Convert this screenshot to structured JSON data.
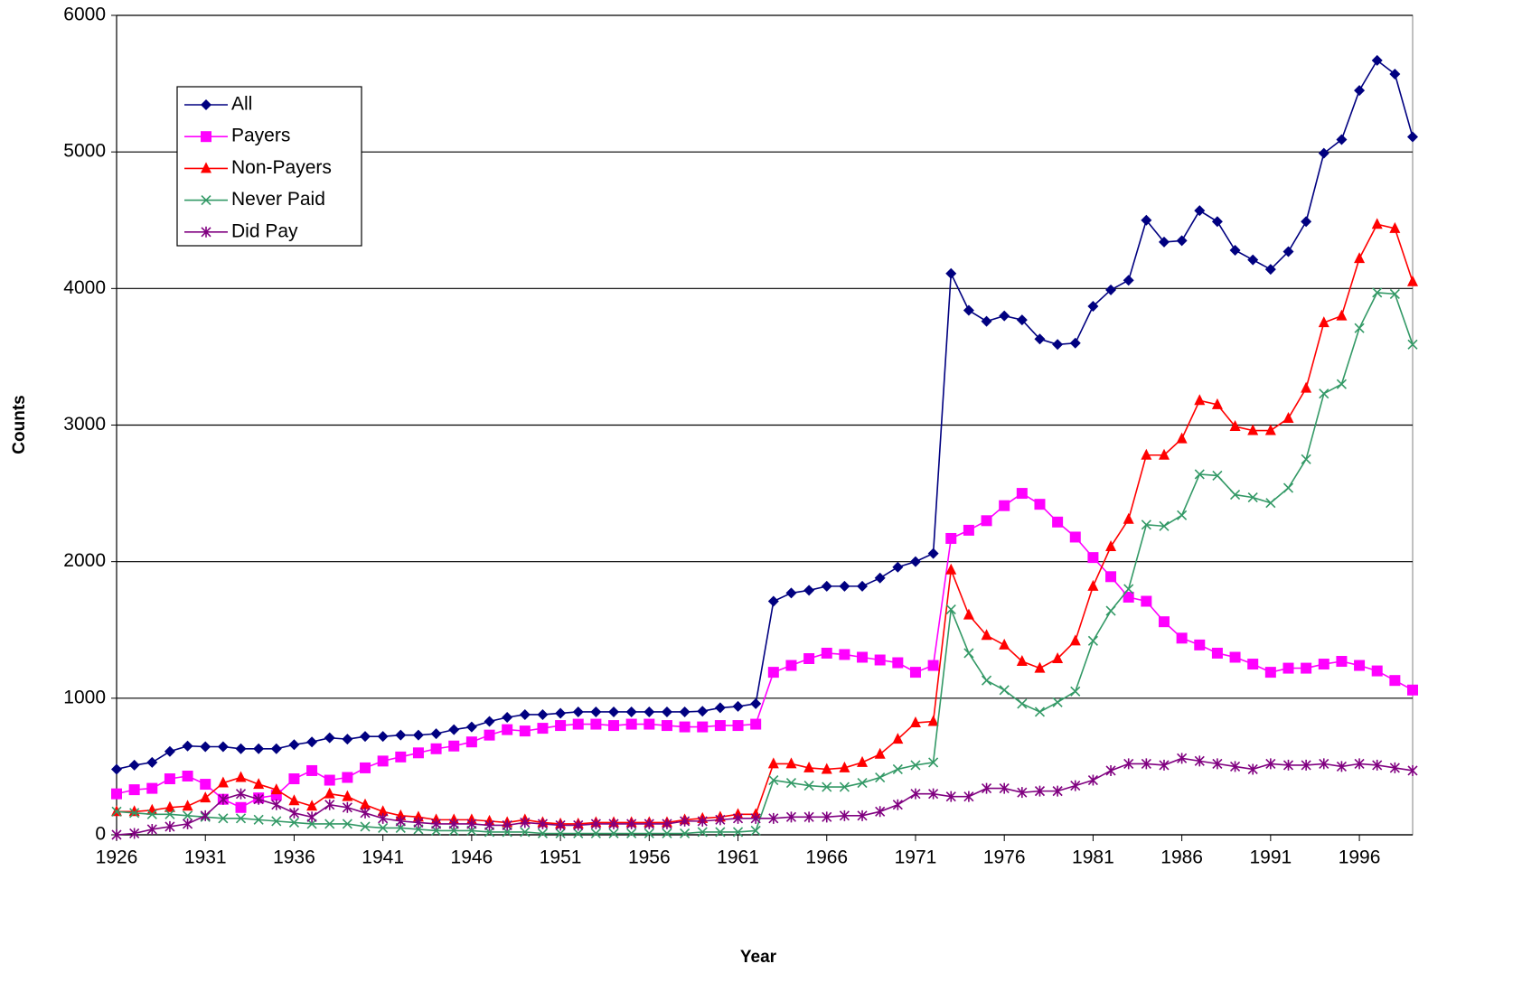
{
  "chart_data": {
    "type": "line",
    "xlabel": "Year",
    "ylabel": "Counts",
    "x": [
      1926,
      1927,
      1928,
      1929,
      1930,
      1931,
      1932,
      1933,
      1934,
      1935,
      1936,
      1937,
      1938,
      1939,
      1940,
      1941,
      1942,
      1943,
      1944,
      1945,
      1946,
      1947,
      1948,
      1949,
      1950,
      1951,
      1952,
      1953,
      1954,
      1955,
      1956,
      1957,
      1958,
      1959,
      1960,
      1961,
      1962,
      1963,
      1964,
      1965,
      1966,
      1967,
      1968,
      1969,
      1970,
      1971,
      1972,
      1973,
      1974,
      1975,
      1976,
      1977,
      1978,
      1979,
      1980,
      1981,
      1982,
      1983,
      1984,
      1985,
      1986,
      1987,
      1988,
      1989,
      1990,
      1991,
      1992,
      1993,
      1994,
      1995,
      1996,
      1997,
      1998,
      1999
    ],
    "xlim": [
      1926,
      1999
    ],
    "xticks": [
      1926,
      1931,
      1936,
      1941,
      1946,
      1951,
      1956,
      1961,
      1966,
      1971,
      1976,
      1981,
      1986,
      1991,
      1996
    ],
    "ylim": [
      0,
      6000
    ],
    "yticks": [
      0,
      1000,
      2000,
      3000,
      4000,
      5000,
      6000
    ],
    "grid": true,
    "legend": "upper left",
    "series": [
      {
        "name": "All",
        "color": "#000080",
        "marker": "diamond",
        "values": [
          480,
          510,
          530,
          610,
          650,
          645,
          645,
          630,
          630,
          630,
          660,
          680,
          710,
          700,
          720,
          720,
          730,
          730,
          740,
          770,
          790,
          830,
          860,
          880,
          880,
          890,
          900,
          900,
          900,
          900,
          900,
          900,
          900,
          905,
          930,
          940,
          960,
          1710,
          1770,
          1790,
          1820,
          1820,
          1820,
          1880,
          1960,
          2000,
          2060,
          4110,
          3840,
          3760,
          3800,
          3770,
          3630,
          3590,
          3600,
          3870,
          3990,
          4060,
          4500,
          4340,
          4350,
          4570,
          4490,
          4280,
          4210,
          4140,
          4270,
          4490,
          4990,
          5090,
          5450,
          5670,
          5570,
          5110
        ]
      },
      {
        "name": "Payers",
        "color": "#ff00ff",
        "marker": "square",
        "values": [
          300,
          330,
          340,
          410,
          430,
          370,
          260,
          200,
          270,
          290,
          410,
          470,
          400,
          420,
          490,
          540,
          570,
          600,
          630,
          650,
          680,
          730,
          770,
          760,
          780,
          800,
          810,
          810,
          800,
          810,
          810,
          800,
          790,
          790,
          800,
          800,
          810,
          1190,
          1240,
          1290,
          1330,
          1320,
          1300,
          1280,
          1260,
          1190,
          1240,
          2170,
          2230,
          2300,
          2410,
          2500,
          2420,
          2290,
          2180,
          2030,
          1890,
          1740,
          1710,
          1560,
          1440,
          1390,
          1330,
          1300,
          1250,
          1190,
          1220,
          1220,
          1250,
          1270,
          1240,
          1200,
          1130,
          1060
        ]
      },
      {
        "name": "Non-Payers",
        "color": "#ff0000",
        "marker": "triangle",
        "values": [
          170,
          170,
          180,
          200,
          210,
          270,
          380,
          420,
          370,
          330,
          250,
          210,
          300,
          280,
          220,
          170,
          140,
          130,
          110,
          110,
          110,
          100,
          90,
          110,
          90,
          80,
          80,
          90,
          90,
          90,
          90,
          90,
          110,
          120,
          130,
          150,
          150,
          520,
          520,
          490,
          480,
          490,
          530,
          590,
          700,
          820,
          830,
          1940,
          1610,
          1460,
          1390,
          1270,
          1220,
          1290,
          1420,
          1820,
          2110,
          2310,
          2780,
          2780,
          2900,
          3180,
          3150,
          2990,
          2960,
          2960,
          3050,
          3270,
          3750,
          3800,
          4220,
          4470,
          4440,
          4050
        ]
      },
      {
        "name": "Never Paid",
        "color": "#339966",
        "marker": "x",
        "values": [
          170,
          160,
          150,
          150,
          140,
          130,
          120,
          120,
          110,
          100,
          90,
          80,
          80,
          80,
          60,
          50,
          50,
          40,
          30,
          30,
          30,
          20,
          20,
          20,
          10,
          10,
          10,
          10,
          10,
          10,
          10,
          10,
          10,
          20,
          20,
          20,
          30,
          400,
          380,
          360,
          350,
          350,
          380,
          420,
          480,
          510,
          530,
          1650,
          1330,
          1130,
          1060,
          960,
          900,
          970,
          1050,
          1420,
          1640,
          1800,
          2270,
          2260,
          2340,
          2640,
          2630,
          2490,
          2470,
          2430,
          2540,
          2750,
          3230,
          3300,
          3710,
          3970,
          3960,
          3590
        ]
      },
      {
        "name": "Did Pay",
        "color": "#800080",
        "marker": "star",
        "values": [
          0,
          10,
          40,
          60,
          80,
          140,
          260,
          300,
          260,
          220,
          160,
          130,
          220,
          200,
          160,
          120,
          100,
          90,
          80,
          80,
          80,
          70,
          70,
          90,
          80,
          70,
          70,
          80,
          80,
          80,
          80,
          80,
          100,
          100,
          110,
          120,
          120,
          120,
          130,
          130,
          130,
          140,
          140,
          170,
          220,
          300,
          300,
          280,
          280,
          340,
          340,
          310,
          320,
          320,
          360,
          400,
          470,
          520,
          520,
          510,
          560,
          540,
          520,
          500,
          480,
          520,
          510,
          510,
          520,
          500,
          520,
          510,
          490,
          470
        ]
      }
    ]
  }
}
